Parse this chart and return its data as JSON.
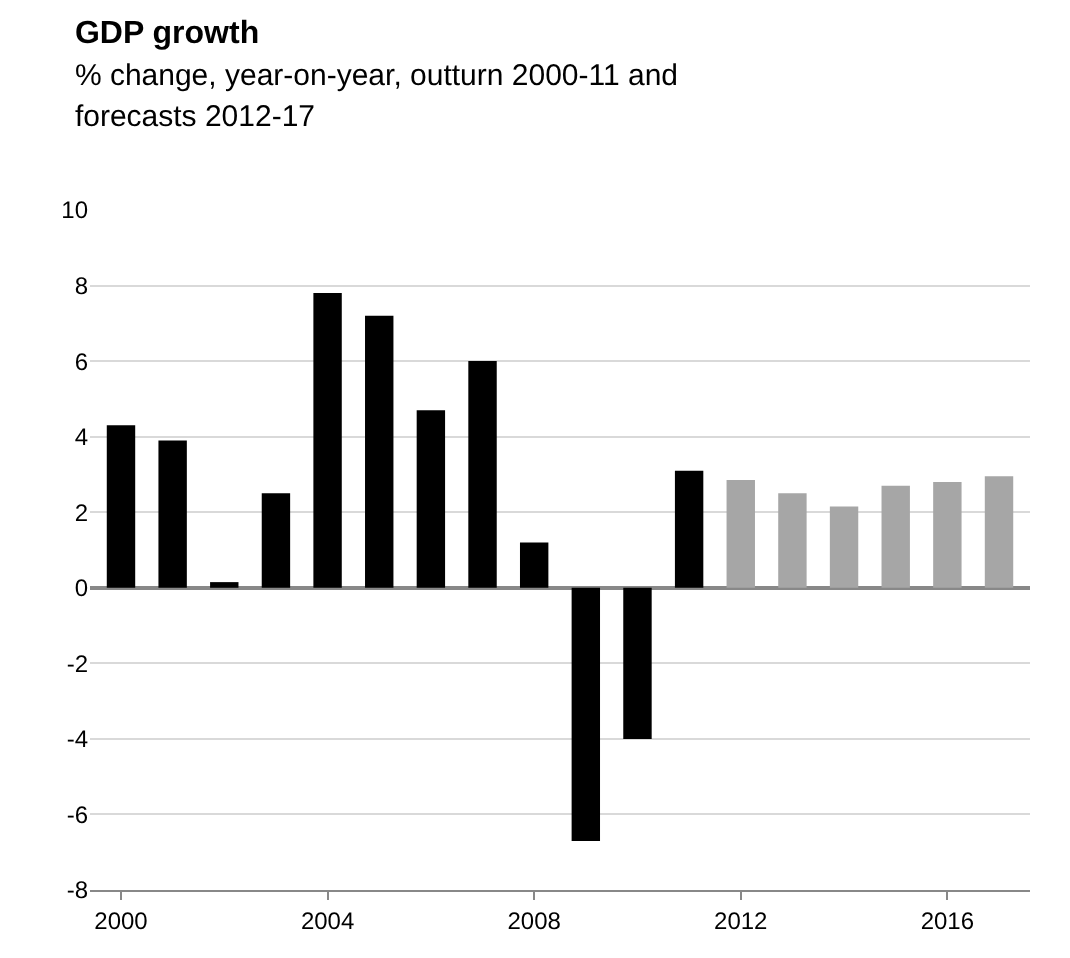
{
  "chart_data": {
    "type": "bar",
    "title": "GDP growth",
    "subtitle": "% change, year-on-year, outturn 2000-11 and forecasts 2012-17",
    "x": [
      2000,
      2001,
      2002,
      2003,
      2004,
      2005,
      2006,
      2007,
      2008,
      2009,
      2010,
      2011,
      2012,
      2013,
      2014,
      2015,
      2016,
      2017
    ],
    "values": [
      4.3,
      3.9,
      0.15,
      2.5,
      7.8,
      7.2,
      4.7,
      6.0,
      1.2,
      -6.7,
      -4.0,
      3.1,
      2.85,
      2.5,
      2.15,
      2.7,
      2.8,
      2.95
    ],
    "colors": [
      "#000000",
      "#000000",
      "#000000",
      "#000000",
      "#000000",
      "#000000",
      "#000000",
      "#000000",
      "#000000",
      "#000000",
      "#000000",
      "#000000",
      "#a6a6a6",
      "#a6a6a6",
      "#a6a6a6",
      "#a6a6a6",
      "#a6a6a6",
      "#a6a6a6"
    ],
    "xlim": [
      1999.4,
      2017.6
    ],
    "xticks": [
      2000,
      2004,
      2008,
      2012,
      2016
    ],
    "ylim": [
      -8,
      10
    ],
    "yticks": [
      -8,
      -6,
      -4,
      -2,
      0,
      2,
      4,
      6,
      8,
      10
    ],
    "grid": "y"
  }
}
